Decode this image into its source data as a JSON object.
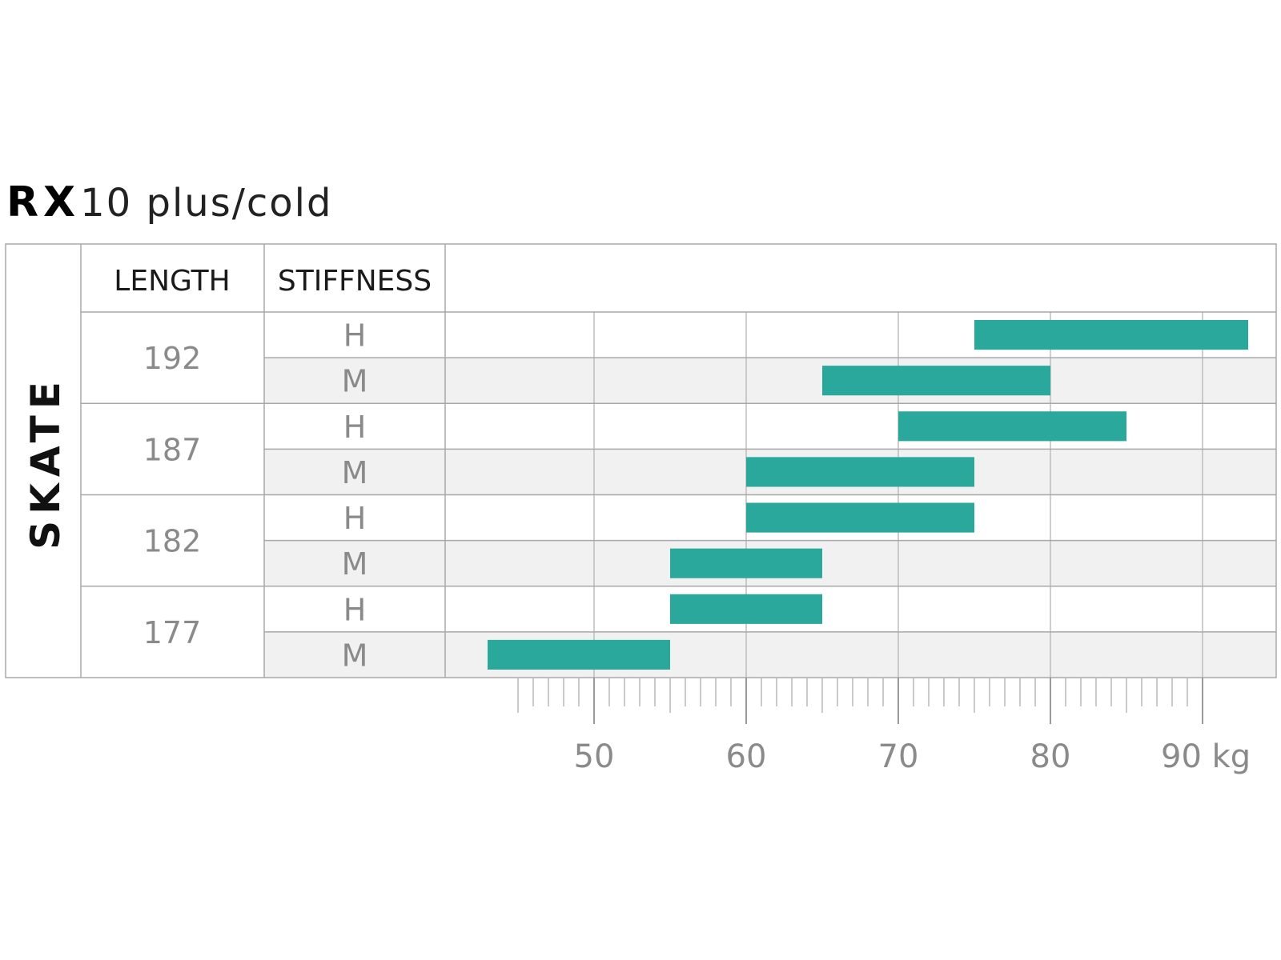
{
  "title": {
    "bold": "RX",
    "light": "10  plus/cold"
  },
  "side_label": "SKATE",
  "headers": {
    "length": "LENGTH",
    "stiffness": "STIFFNESS"
  },
  "colors": {
    "bar": "#2aa89b",
    "grid": "#bdbdbd",
    "border": "#a8a8a8",
    "stripe": "#f1f1f1",
    "text_muted": "#8a8a8a"
  },
  "chart_data": {
    "type": "bar",
    "orientation": "horizontal",
    "xunit": "kg",
    "xlim": [
      40.3,
      95.0
    ],
    "x_ticks": [
      50,
      60,
      70,
      80,
      90
    ],
    "x_tick_labels": [
      "50",
      "60",
      "70",
      "80",
      "90 kg"
    ],
    "minor_tick_start": 45,
    "minor_tick_end": 90,
    "groups": [
      {
        "length": "192",
        "rows": [
          {
            "stiffness": "H",
            "range": [
              75,
              93
            ]
          },
          {
            "stiffness": "M",
            "range": [
              65,
              80
            ]
          }
        ]
      },
      {
        "length": "187",
        "rows": [
          {
            "stiffness": "H",
            "range": [
              70,
              85
            ]
          },
          {
            "stiffness": "M",
            "range": [
              60,
              75
            ]
          }
        ]
      },
      {
        "length": "182",
        "rows": [
          {
            "stiffness": "H",
            "range": [
              60,
              75
            ]
          },
          {
            "stiffness": "M",
            "range": [
              55,
              65
            ]
          }
        ]
      },
      {
        "length": "177",
        "rows": [
          {
            "stiffness": "H",
            "range": [
              55,
              65
            ]
          },
          {
            "stiffness": "M",
            "range": [
              43,
              55
            ]
          }
        ]
      }
    ]
  }
}
